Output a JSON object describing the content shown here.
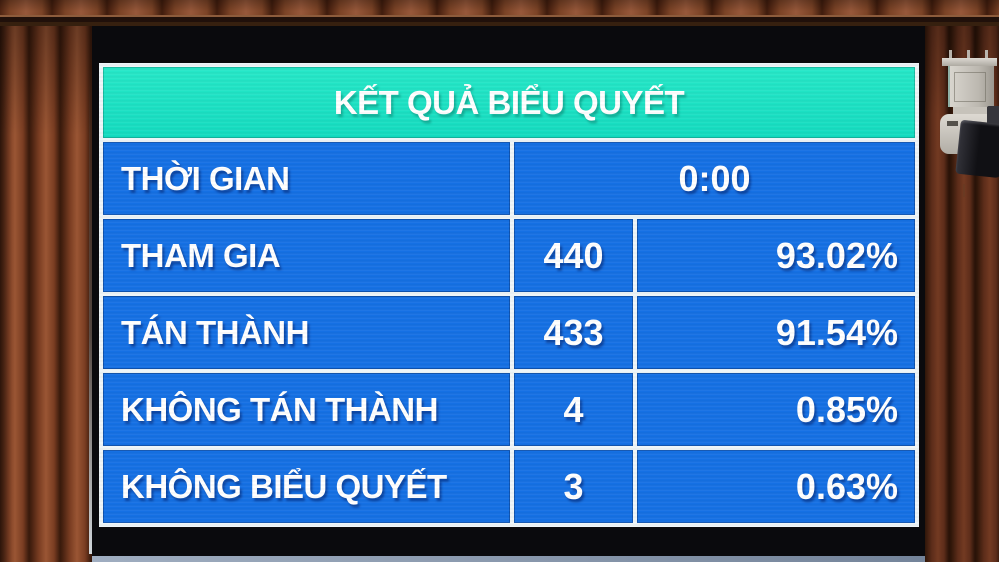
{
  "board": {
    "title": "KẾT QUẢ BIỂU QUYẾT",
    "time_row": {
      "label": "THỜI GIAN",
      "value": "0:00"
    },
    "result_rows": [
      {
        "label": "THAM GIA",
        "count": "440",
        "percent": "93.02%"
      },
      {
        "label": "TÁN THÀNH",
        "count": "433",
        "percent": "91.54%"
      },
      {
        "label": "KHÔNG TÁN THÀNH",
        "count": "4",
        "percent": "0.85%"
      },
      {
        "label": "KHÔNG BIỂU QUYẾT",
        "count": "3",
        "percent": "0.63%"
      }
    ],
    "colors": {
      "header_bg": "#14dcc0",
      "cell_bg": "#1570e4",
      "grid_line": "#eef5f8",
      "text": "#ffffff"
    }
  },
  "scene": {
    "objects": [
      "wood-paneling",
      "led-display-board",
      "security-camera"
    ]
  }
}
